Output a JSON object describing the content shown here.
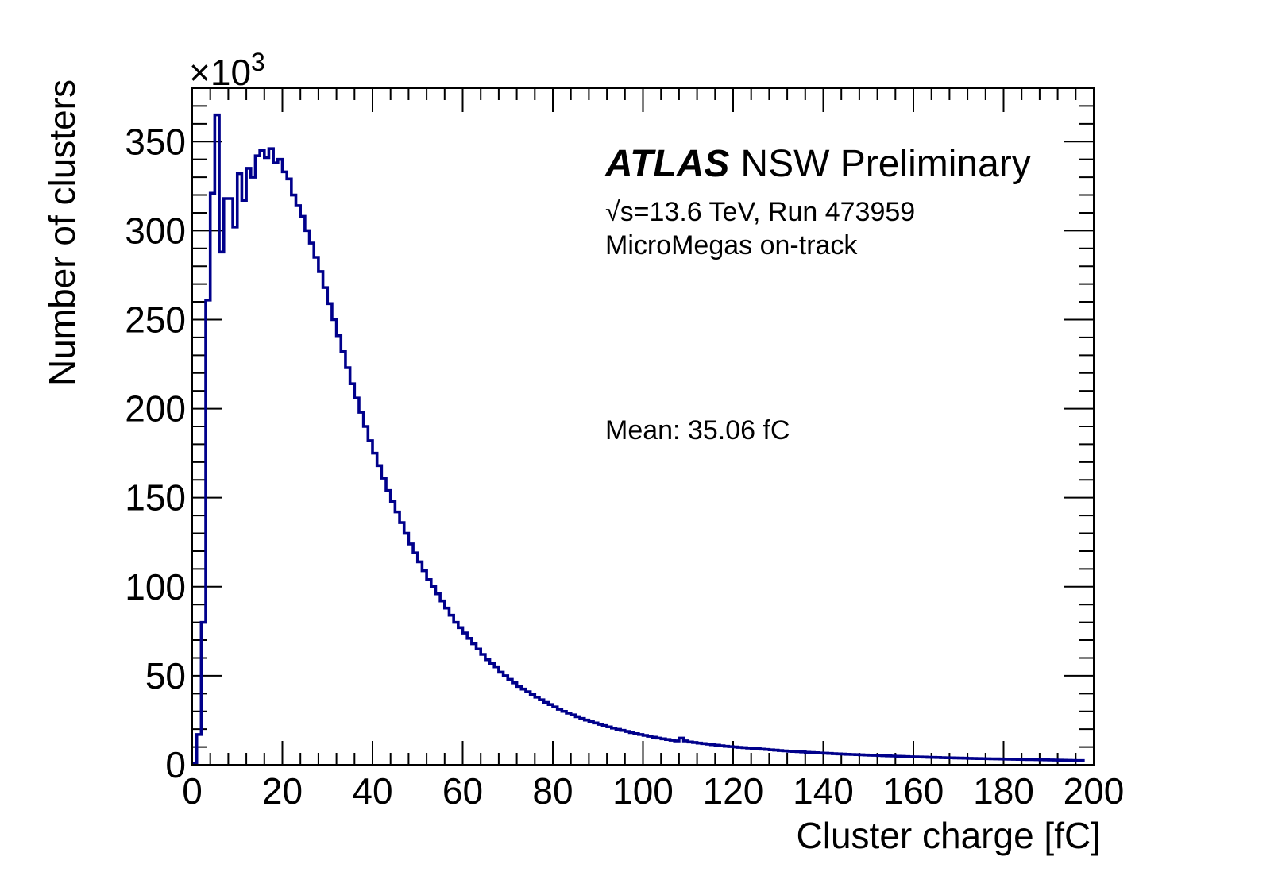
{
  "chart_data": {
    "type": "histogram",
    "title": "",
    "xlabel": "Cluster charge [fC]",
    "ylabel": "Number of clusters",
    "y_scale_label": "×10",
    "y_scale_exponent": "3",
    "xlim": [
      0,
      200
    ],
    "ylim": [
      0,
      380
    ],
    "x_ticks": [
      0,
      20,
      40,
      60,
      80,
      100,
      120,
      140,
      160,
      180,
      200
    ],
    "x_tick_labels": [
      "0",
      "20",
      "40",
      "60",
      "80",
      "100",
      "120",
      "140",
      "160",
      "180",
      "200"
    ],
    "y_ticks": [
      0,
      50,
      100,
      150,
      200,
      250,
      300,
      350
    ],
    "y_tick_labels": [
      "0",
      "50",
      "100",
      "150",
      "200",
      "250",
      "300",
      "350"
    ],
    "bin_width": 1,
    "series": [
      {
        "name": "MicroMegas on-track",
        "color": "#00008b",
        "values": [
          1,
          17,
          80,
          261,
          321,
          365,
          288,
          318,
          318,
          302,
          332,
          317,
          335,
          330,
          342,
          345,
          341,
          346,
          338,
          340,
          333,
          329,
          320,
          314,
          308,
          300,
          293,
          285,
          277,
          268,
          259,
          250,
          241,
          232,
          223,
          214,
          206,
          198,
          190,
          182,
          175,
          168,
          161,
          154,
          148,
          142,
          136,
          130,
          124,
          119,
          114,
          109,
          104,
          100,
          96,
          92,
          88,
          84,
          80,
          77,
          74,
          71,
          68,
          65,
          62,
          59,
          57,
          55,
          52,
          50,
          48,
          46,
          44,
          42.5,
          41,
          39.5,
          38,
          36.5,
          35,
          33.8,
          32.5,
          31.2,
          30,
          29,
          28,
          27,
          26,
          25.1,
          24.3,
          23.5,
          22.7,
          22,
          21.3,
          20.6,
          19.9,
          19.3,
          18.7,
          18.1,
          17.5,
          17,
          16.5,
          16,
          15.5,
          15,
          14.6,
          14.2,
          13.8,
          13.4,
          15,
          13.4,
          12.8,
          12.5,
          12.2,
          11.9,
          11.6,
          11.3,
          11,
          10.7,
          10.4,
          10.2,
          10,
          9.8,
          9.6,
          9.4,
          9.2,
          9,
          8.8,
          8.6,
          8.4,
          8.2,
          8,
          7.8,
          7.6,
          7.5,
          7.4,
          7.2,
          7,
          6.9,
          6.8,
          6.6,
          6.5,
          6.4,
          6.2,
          6.1,
          6,
          5.9,
          5.8,
          5.7,
          5.6,
          5.5,
          5.4,
          5.3,
          5.2,
          5.1,
          5,
          4.9,
          4.8,
          4.7,
          4.6,
          4.5,
          4.45,
          4.4,
          4.3,
          4.2,
          4.15,
          4.1,
          4,
          3.95,
          3.9,
          3.8,
          3.75,
          3.7,
          3.6,
          3.55,
          3.5,
          3.45,
          3.4,
          3.35,
          3.3,
          3.25,
          3.2,
          3.15,
          3.1,
          3.05,
          3,
          2.95,
          2.9,
          2.85,
          2.8,
          2.75,
          2.7,
          2.65,
          2.6,
          2.55,
          2.5,
          2.45,
          2.4,
          2.35
        ]
      }
    ],
    "annotations": {
      "atlas_label": "ATLAS",
      "atlas_suffix": "NSW Preliminary",
      "energy_sqrt": "√s",
      "energy_rest": "=13.6 TeV, Run 473959",
      "selection": "MicroMegas on-track",
      "mean": "Mean: 35.06 fC"
    },
    "grid": false,
    "legend": "none"
  }
}
